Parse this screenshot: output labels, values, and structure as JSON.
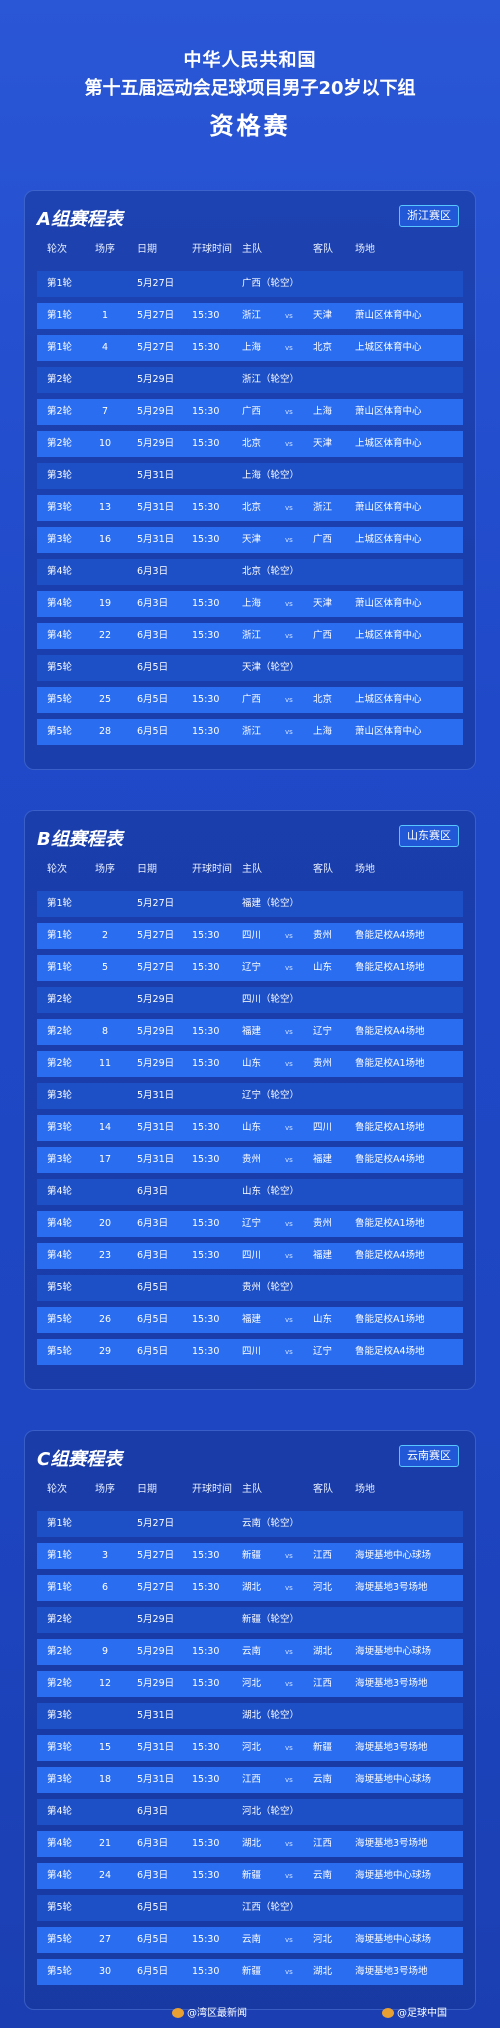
{
  "header": {
    "line1": "中华人民共和国",
    "line2": "第十五届运动会足球项目男子20岁以下组",
    "line3": "资格赛"
  },
  "columns": [
    "轮次",
    "场序",
    "日期",
    "开球时间",
    "主队",
    "客队",
    "场地"
  ],
  "groups": [
    {
      "title": "A组赛程表",
      "region": "浙江赛区",
      "rows": [
        {
          "round": "第1轮",
          "match": "",
          "date": "5月27日",
          "time": "",
          "home": "广西（轮空）",
          "vs": "",
          "away": "",
          "venue": ""
        },
        {
          "round": "第1轮",
          "match": "1",
          "date": "5月27日",
          "time": "15:30",
          "home": "浙江",
          "vs": "vs",
          "away": "天津",
          "venue": "萧山区体育中心"
        },
        {
          "round": "第1轮",
          "match": "4",
          "date": "5月27日",
          "time": "15:30",
          "home": "上海",
          "vs": "vs",
          "away": "北京",
          "venue": "上城区体育中心"
        },
        {
          "round": "第2轮",
          "match": "",
          "date": "5月29日",
          "time": "",
          "home": "浙江（轮空）",
          "vs": "",
          "away": "",
          "venue": ""
        },
        {
          "round": "第2轮",
          "match": "7",
          "date": "5月29日",
          "time": "15:30",
          "home": "广西",
          "vs": "vs",
          "away": "上海",
          "venue": "萧山区体育中心"
        },
        {
          "round": "第2轮",
          "match": "10",
          "date": "5月29日",
          "time": "15:30",
          "home": "北京",
          "vs": "vs",
          "away": "天津",
          "venue": "上城区体育中心"
        },
        {
          "round": "第3轮",
          "match": "",
          "date": "5月31日",
          "time": "",
          "home": "上海（轮空）",
          "vs": "",
          "away": "",
          "venue": ""
        },
        {
          "round": "第3轮",
          "match": "13",
          "date": "5月31日",
          "time": "15:30",
          "home": "北京",
          "vs": "vs",
          "away": "浙江",
          "venue": "萧山区体育中心"
        },
        {
          "round": "第3轮",
          "match": "16",
          "date": "5月31日",
          "time": "15:30",
          "home": "天津",
          "vs": "vs",
          "away": "广西",
          "venue": "上城区体育中心"
        },
        {
          "round": "第4轮",
          "match": "",
          "date": "6月3日",
          "time": "",
          "home": "北京（轮空）",
          "vs": "",
          "away": "",
          "venue": ""
        },
        {
          "round": "第4轮",
          "match": "19",
          "date": "6月3日",
          "time": "15:30",
          "home": "上海",
          "vs": "vs",
          "away": "天津",
          "venue": "萧山区体育中心"
        },
        {
          "round": "第4轮",
          "match": "22",
          "date": "6月3日",
          "time": "15:30",
          "home": "浙江",
          "vs": "vs",
          "away": "广西",
          "venue": "上城区体育中心"
        },
        {
          "round": "第5轮",
          "match": "",
          "date": "6月5日",
          "time": "",
          "home": "天津（轮空）",
          "vs": "",
          "away": "",
          "venue": ""
        },
        {
          "round": "第5轮",
          "match": "25",
          "date": "6月5日",
          "time": "15:30",
          "home": "广西",
          "vs": "vs",
          "away": "北京",
          "venue": "上城区体育中心"
        },
        {
          "round": "第5轮",
          "match": "28",
          "date": "6月5日",
          "time": "15:30",
          "home": "浙江",
          "vs": "vs",
          "away": "上海",
          "venue": "萧山区体育中心"
        }
      ]
    },
    {
      "title": "B组赛程表",
      "region": "山东赛区",
      "rows": [
        {
          "round": "第1轮",
          "match": "",
          "date": "5月27日",
          "time": "",
          "home": "福建（轮空）",
          "vs": "",
          "away": "",
          "venue": ""
        },
        {
          "round": "第1轮",
          "match": "2",
          "date": "5月27日",
          "time": "15:30",
          "home": "四川",
          "vs": "vs",
          "away": "贵州",
          "venue": "鲁能足校A4场地"
        },
        {
          "round": "第1轮",
          "match": "5",
          "date": "5月27日",
          "time": "15:30",
          "home": "辽宁",
          "vs": "vs",
          "away": "山东",
          "venue": "鲁能足校A1场地"
        },
        {
          "round": "第2轮",
          "match": "",
          "date": "5月29日",
          "time": "",
          "home": "四川（轮空）",
          "vs": "",
          "away": "",
          "venue": ""
        },
        {
          "round": "第2轮",
          "match": "8",
          "date": "5月29日",
          "time": "15:30",
          "home": "福建",
          "vs": "vs",
          "away": "辽宁",
          "venue": "鲁能足校A4场地"
        },
        {
          "round": "第2轮",
          "match": "11",
          "date": "5月29日",
          "time": "15:30",
          "home": "山东",
          "vs": "vs",
          "away": "贵州",
          "venue": "鲁能足校A1场地"
        },
        {
          "round": "第3轮",
          "match": "",
          "date": "5月31日",
          "time": "",
          "home": "辽宁（轮空）",
          "vs": "",
          "away": "",
          "venue": ""
        },
        {
          "round": "第3轮",
          "match": "14",
          "date": "5月31日",
          "time": "15:30",
          "home": "山东",
          "vs": "vs",
          "away": "四川",
          "venue": "鲁能足校A1场地"
        },
        {
          "round": "第3轮",
          "match": "17",
          "date": "5月31日",
          "time": "15:30",
          "home": "贵州",
          "vs": "vs",
          "away": "福建",
          "venue": "鲁能足校A4场地"
        },
        {
          "round": "第4轮",
          "match": "",
          "date": "6月3日",
          "time": "",
          "home": "山东（轮空）",
          "vs": "",
          "away": "",
          "venue": ""
        },
        {
          "round": "第4轮",
          "match": "20",
          "date": "6月3日",
          "time": "15:30",
          "home": "辽宁",
          "vs": "vs",
          "away": "贵州",
          "venue": "鲁能足校A1场地"
        },
        {
          "round": "第4轮",
          "match": "23",
          "date": "6月3日",
          "time": "15:30",
          "home": "四川",
          "vs": "vs",
          "away": "福建",
          "venue": "鲁能足校A4场地"
        },
        {
          "round": "第5轮",
          "match": "",
          "date": "6月5日",
          "time": "",
          "home": "贵州（轮空）",
          "vs": "",
          "away": "",
          "venue": ""
        },
        {
          "round": "第5轮",
          "match": "26",
          "date": "6月5日",
          "time": "15:30",
          "home": "福建",
          "vs": "vs",
          "away": "山东",
          "venue": "鲁能足校A1场地"
        },
        {
          "round": "第5轮",
          "match": "29",
          "date": "6月5日",
          "time": "15:30",
          "home": "四川",
          "vs": "vs",
          "away": "辽宁",
          "venue": "鲁能足校A4场地"
        }
      ]
    },
    {
      "title": "C组赛程表",
      "region": "云南赛区",
      "rows": [
        {
          "round": "第1轮",
          "match": "",
          "date": "5月27日",
          "time": "",
          "home": "云南（轮空）",
          "vs": "",
          "away": "",
          "venue": ""
        },
        {
          "round": "第1轮",
          "match": "3",
          "date": "5月27日",
          "time": "15:30",
          "home": "新疆",
          "vs": "vs",
          "away": "江西",
          "venue": "海埂基地中心球场"
        },
        {
          "round": "第1轮",
          "match": "6",
          "date": "5月27日",
          "time": "15:30",
          "home": "湖北",
          "vs": "vs",
          "away": "河北",
          "venue": "海埂基地3号场地"
        },
        {
          "round": "第2轮",
          "match": "",
          "date": "5月29日",
          "time": "",
          "home": "新疆（轮空）",
          "vs": "",
          "away": "",
          "venue": ""
        },
        {
          "round": "第2轮",
          "match": "9",
          "date": "5月29日",
          "time": "15:30",
          "home": "云南",
          "vs": "vs",
          "away": "湖北",
          "venue": "海埂基地中心球场"
        },
        {
          "round": "第2轮",
          "match": "12",
          "date": "5月29日",
          "time": "15:30",
          "home": "河北",
          "vs": "vs",
          "away": "江西",
          "venue": "海埂基地3号场地"
        },
        {
          "round": "第3轮",
          "match": "",
          "date": "5月31日",
          "time": "",
          "home": "湖北（轮空）",
          "vs": "",
          "away": "",
          "venue": ""
        },
        {
          "round": "第3轮",
          "match": "15",
          "date": "5月31日",
          "time": "15:30",
          "home": "河北",
          "vs": "vs",
          "away": "新疆",
          "venue": "海埂基地3号场地"
        },
        {
          "round": "第3轮",
          "match": "18",
          "date": "5月31日",
          "time": "15:30",
          "home": "江西",
          "vs": "vs",
          "away": "云南",
          "venue": "海埂基地中心球场"
        },
        {
          "round": "第4轮",
          "match": "",
          "date": "6月3日",
          "time": "",
          "home": "河北（轮空）",
          "vs": "",
          "away": "",
          "venue": ""
        },
        {
          "round": "第4轮",
          "match": "21",
          "date": "6月3日",
          "time": "15:30",
          "home": "湖北",
          "vs": "vs",
          "away": "江西",
          "venue": "海埂基地3号场地"
        },
        {
          "round": "第4轮",
          "match": "24",
          "date": "6月3日",
          "time": "15:30",
          "home": "新疆",
          "vs": "vs",
          "away": "云南",
          "venue": "海埂基地中心球场"
        },
        {
          "round": "第5轮",
          "match": "",
          "date": "6月5日",
          "time": "",
          "home": "江西（轮空）",
          "vs": "",
          "away": "",
          "venue": ""
        },
        {
          "round": "第5轮",
          "match": "27",
          "date": "6月5日",
          "time": "15:30",
          "home": "云南",
          "vs": "vs",
          "away": "河北",
          "venue": "海埂基地中心球场"
        },
        {
          "round": "第5轮",
          "match": "30",
          "date": "6月5日",
          "time": "15:30",
          "home": "新疆",
          "vs": "vs",
          "away": "湖北",
          "venue": "海埂基地3号场地"
        }
      ]
    }
  ],
  "footer": {
    "watermark1": "@湾区最新闻",
    "watermark2": "@足球中国"
  }
}
